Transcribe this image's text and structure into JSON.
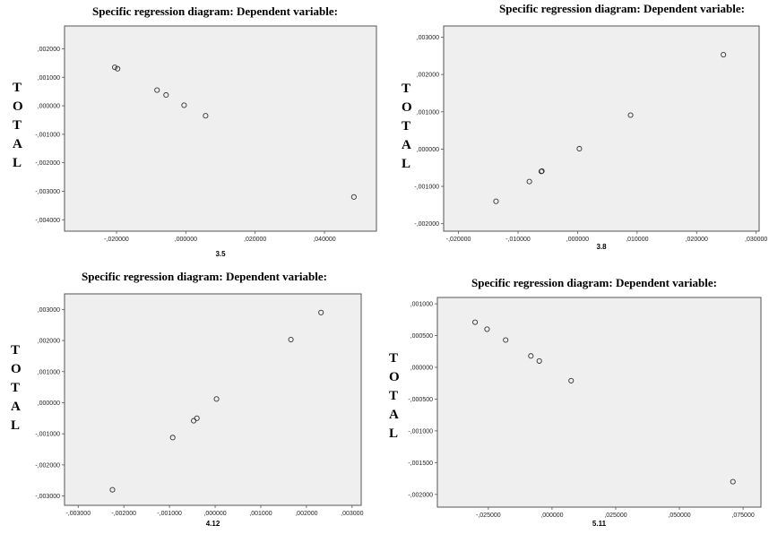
{
  "chart_data": [
    {
      "type": "scatter",
      "title": "Specific regression diagram: Dependent variable:",
      "xlabel": "3.5",
      "ylabel": "TOTAL",
      "xlim": [
        -0.035,
        0.055
      ],
      "ylim": [
        -0.0044,
        0.0028
      ],
      "xticks": [
        -0.02,
        0.0,
        0.02,
        0.04
      ],
      "xtick_labels": [
        "-,020000",
        ",000000",
        ",020000",
        ",040000"
      ],
      "yticks": [
        0.002,
        0.001,
        0.0,
        -0.001,
        -0.002,
        -0.003,
        -0.004
      ],
      "ytick_labels": [
        ",002000",
        ",001000",
        ",000000",
        "-,001000",
        "-,002000",
        "-,003000",
        "-,004000"
      ],
      "grid": false,
      "points": [
        {
          "x": -0.0205,
          "y": 0.00135
        },
        {
          "x": -0.0197,
          "y": 0.0013
        },
        {
          "x": -0.0083,
          "y": 0.00055
        },
        {
          "x": -0.0057,
          "y": 0.00038
        },
        {
          "x": -0.0005,
          "y": 2e-05
        },
        {
          "x": 0.0057,
          "y": -0.00035
        },
        {
          "x": 0.0485,
          "y": -0.0032
        }
      ]
    },
    {
      "type": "scatter",
      "title": "Specific regression diagram: Dependent variable:",
      "xlabel": "3.8",
      "ylabel": "TOTAL",
      "xlim": [
        -0.0225,
        0.0305
      ],
      "ylim": [
        -0.0022,
        0.0033
      ],
      "xticks": [
        -0.02,
        -0.01,
        0.0,
        0.01,
        0.02,
        0.03
      ],
      "xtick_labels": [
        "-,020000",
        "-,010000",
        ",000000",
        ",010000",
        ",020000",
        ",030000"
      ],
      "yticks": [
        0.003,
        0.002,
        0.001,
        0.0,
        -0.001,
        -0.002
      ],
      "ytick_labels": [
        ",003000",
        ",002000",
        ",001000",
        ",000000",
        "-,001000",
        "-,002000"
      ],
      "grid": false,
      "points": [
        {
          "x": -0.0137,
          "y": -0.0014
        },
        {
          "x": -0.0081,
          "y": -0.00087
        },
        {
          "x": -0.0061,
          "y": -0.0006
        },
        {
          "x": -0.006,
          "y": -0.00059
        },
        {
          "x": 0.0003,
          "y": 1e-05
        },
        {
          "x": 0.0089,
          "y": 0.00091
        },
        {
          "x": 0.0245,
          "y": 0.00253
        }
      ]
    },
    {
      "type": "scatter",
      "title": "Specific regression diagram: Dependent variable:",
      "xlabel": "4.12",
      "ylabel": "TOTAL",
      "xlim": [
        -0.0033,
        0.0032
      ],
      "ylim": [
        -0.0033,
        0.0035
      ],
      "xticks": [
        -0.003,
        -0.002,
        -0.001,
        0.0,
        0.001,
        0.002,
        0.003
      ],
      "xtick_labels": [
        "-,003000",
        "-,002000",
        "-,001000",
        ",000000",
        ",001000",
        ",002000",
        ",003000"
      ],
      "yticks": [
        0.003,
        0.002,
        0.001,
        0.0,
        -0.001,
        -0.002,
        -0.003
      ],
      "ytick_labels": [
        ",003000",
        ",002000",
        ",001000",
        ",000000",
        "-,001000",
        "-,002000",
        "-,003000"
      ],
      "grid": false,
      "points": [
        {
          "x": -0.00225,
          "y": -0.0028
        },
        {
          "x": -0.00093,
          "y": -0.00112
        },
        {
          "x": -0.00047,
          "y": -0.00058
        },
        {
          "x": -0.0004,
          "y": -0.0005
        },
        {
          "x": 3e-05,
          "y": 0.00012
        },
        {
          "x": 0.00166,
          "y": 0.00203
        },
        {
          "x": 0.00232,
          "y": 0.0029
        }
      ]
    },
    {
      "type": "scatter",
      "title": "Specific regression diagram: Dependent variable:",
      "xlabel": "5.11",
      "ylabel": "TOTAL",
      "xlim": [
        -0.045,
        0.082
      ],
      "ylim": [
        -0.0022,
        0.0011
      ],
      "xticks": [
        -0.025,
        0.0,
        0.025,
        0.05,
        0.075
      ],
      "xtick_labels": [
        "-,025000",
        ",000000",
        ",025000",
        ",050000",
        ",075000"
      ],
      "yticks": [
        0.001,
        0.0005,
        0.0,
        -0.0005,
        -0.001,
        -0.0015,
        -0.002
      ],
      "ytick_labels": [
        ",001000",
        ",000500",
        ",000000",
        "-,000500",
        "-,001000",
        "-,001500",
        "-,002000"
      ],
      "grid": false,
      "points": [
        {
          "x": -0.0302,
          "y": 0.00071
        },
        {
          "x": -0.0255,
          "y": 0.0006
        },
        {
          "x": -0.0182,
          "y": 0.00043
        },
        {
          "x": -0.0083,
          "y": 0.00018
        },
        {
          "x": -0.005,
          "y": 0.0001
        },
        {
          "x": 0.0075,
          "y": -0.00021
        },
        {
          "x": 0.071,
          "y": -0.0018
        }
      ]
    }
  ]
}
